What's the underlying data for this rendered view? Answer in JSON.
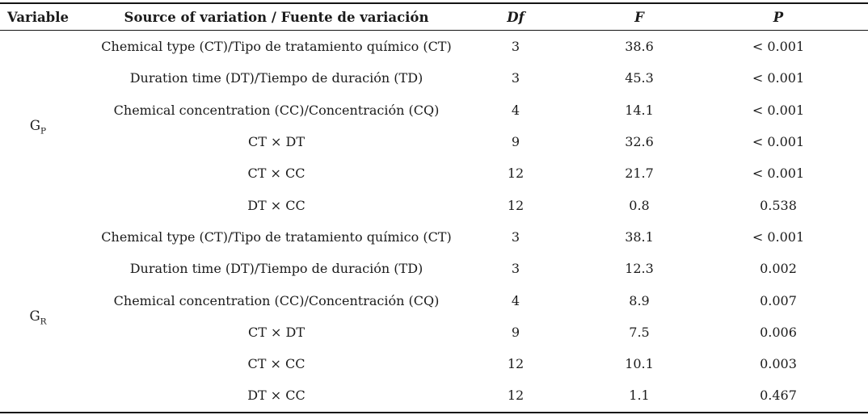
{
  "colors": {
    "text": "#1b1b1b",
    "rule": "#141414",
    "background": "#ffffff"
  },
  "table": {
    "headers": {
      "variable": "Variable",
      "source": "Source of variation / Fuente de variación",
      "df": "Df",
      "f": "F",
      "p": "P"
    },
    "groups": [
      {
        "label": "G",
        "sub": "P",
        "rows": [
          {
            "source": "Chemical type (CT)/Tipo de tratamiento químico (CT)",
            "df": "3",
            "f": "38.6",
            "p": "< 0.001"
          },
          {
            "source": "Duration time (DT)/Tiempo de duración (TD)",
            "df": "3",
            "f": "45.3",
            "p": "< 0.001"
          },
          {
            "source": "Chemical concentration (CC)/Concentración (CQ)",
            "df": "4",
            "f": "14.1",
            "p": "< 0.001"
          },
          {
            "source": "CT × DT",
            "df": "9",
            "f": "32.6",
            "p": "< 0.001"
          },
          {
            "source": "CT × CC",
            "df": "12",
            "f": "21.7",
            "p": "< 0.001"
          },
          {
            "source": "DT × CC",
            "df": "12",
            "f": "0.8",
            "p": "0.538"
          }
        ]
      },
      {
        "label": "G",
        "sub": "R",
        "rows": [
          {
            "source": "Chemical type (CT)/Tipo de tratamiento químico (CT)",
            "df": "3",
            "f": "38.1",
            "p": "< 0.001"
          },
          {
            "source": "Duration time (DT)/Tiempo de duración (TD)",
            "df": "3",
            "f": "12.3",
            "p": "0.002"
          },
          {
            "source": "Chemical concentration (CC)/Concentración (CQ)",
            "df": "4",
            "f": "8.9",
            "p": "0.007"
          },
          {
            "source": "CT × DT",
            "df": "9",
            "f": "7.5",
            "p": "0.006"
          },
          {
            "source": "CT × CC",
            "df": "12",
            "f": "10.1",
            "p": "0.003"
          },
          {
            "source": "DT × CC",
            "df": "12",
            "f": "1.1",
            "p": "0.467"
          }
        ]
      }
    ]
  }
}
